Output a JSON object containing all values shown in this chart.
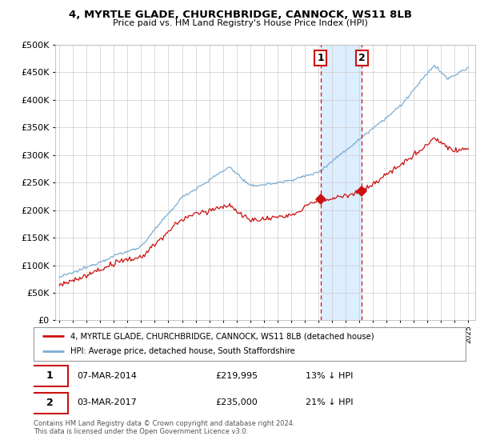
{
  "title": "4, MYRTLE GLADE, CHURCHBRIDGE, CANNOCK, WS11 8LB",
  "subtitle": "Price paid vs. HM Land Registry's House Price Index (HPI)",
  "legend_line1": "4, MYRTLE GLADE, CHURCHBRIDGE, CANNOCK, WS11 8LB (detached house)",
  "legend_line2": "HPI: Average price, detached house, South Staffordshire",
  "sale1_date": "07-MAR-2014",
  "sale1_price": "£219,995",
  "sale1_hpi": "13% ↓ HPI",
  "sale2_date": "03-MAR-2017",
  "sale2_price": "£235,000",
  "sale2_hpi": "21% ↓ HPI",
  "sale1_year": 2014.17,
  "sale1_value": 219995,
  "sale2_year": 2017.17,
  "sale2_value": 235000,
  "hpi_color": "#7aadd4",
  "price_color": "#cc1111",
  "sale_marker_color": "#cc1111",
  "highlight_color": "#ddeeff",
  "vline_color": "#cc1111",
  "background_color": "#ffffff",
  "grid_color": "#cccccc",
  "ylim": [
    0,
    500000
  ],
  "yticks": [
    0,
    50000,
    100000,
    150000,
    200000,
    250000,
    300000,
    350000,
    400000,
    450000,
    500000
  ],
  "footnote": "Contains HM Land Registry data © Crown copyright and database right 2024.\nThis data is licensed under the Open Government Licence v3.0."
}
